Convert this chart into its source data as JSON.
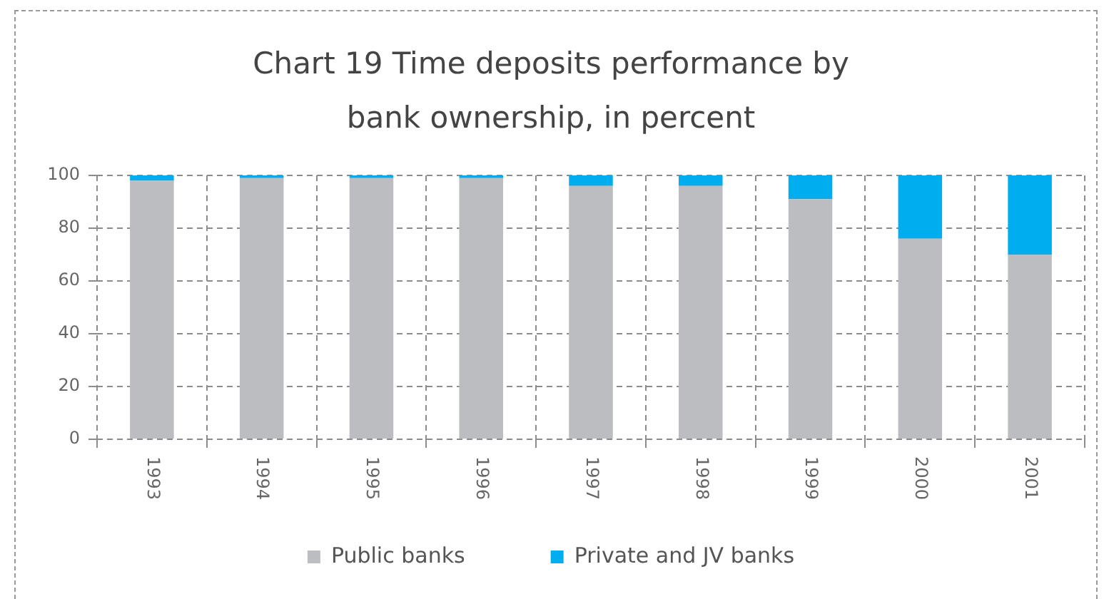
{
  "chart_data": {
    "type": "bar",
    "title": "Chart 19 Time deposits performance by bank ownership, in percent",
    "categories": [
      "1993",
      "1994",
      "1995",
      "1996",
      "1997",
      "1998",
      "1999",
      "2000",
      "2001"
    ],
    "series": [
      {
        "name": "Public banks",
        "color": "#bcbdc1",
        "values": [
          98,
          99,
          99,
          99,
          96,
          96,
          91,
          76,
          70
        ]
      },
      {
        "name": "Private and JV banks",
        "color": "#00aeef",
        "values": [
          2,
          1,
          1,
          1,
          4,
          4,
          9,
          24,
          30
        ]
      }
    ],
    "stacked": true,
    "ylim": [
      0,
      100
    ],
    "yticks": [
      0,
      20,
      40,
      60,
      80,
      100
    ],
    "grid": true,
    "legend": "bottom"
  }
}
